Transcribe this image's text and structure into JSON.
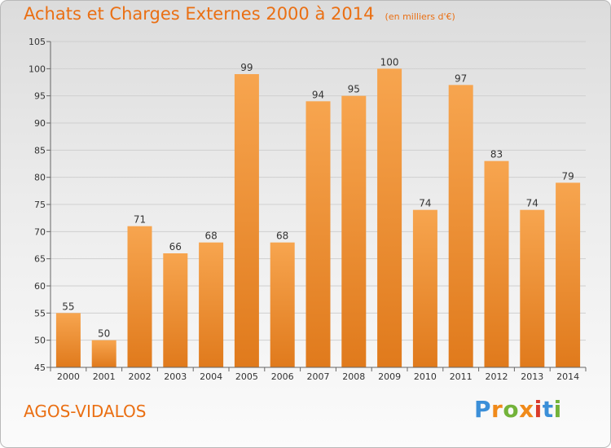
{
  "header": {
    "title": "Achats et Charges Externes 2000 à 2014",
    "unit": "(en milliers d'€)"
  },
  "footer": {
    "commune": "AGOS-VIDALOS"
  },
  "logo": {
    "letters": [
      "P",
      "r",
      "o",
      "x",
      "i",
      "t",
      "i"
    ]
  },
  "colors": {
    "bar_light": "#f7a54f",
    "bar_dark": "#e07a1c",
    "accent": "#ea6f13",
    "grid": "#cfcfcf",
    "axis": "#666666"
  },
  "chart_data": {
    "type": "bar",
    "title": "Achats et Charges Externes 2000 à 2014",
    "categories": [
      "2000",
      "2001",
      "2002",
      "2003",
      "2004",
      "2005",
      "2006",
      "2007",
      "2008",
      "2009",
      "2010",
      "2011",
      "2012",
      "2013",
      "2014"
    ],
    "values": [
      55,
      50,
      71,
      66,
      68,
      99,
      68,
      94,
      95,
      100,
      74,
      97,
      83,
      74,
      79
    ],
    "ylim": [
      45,
      105
    ],
    "yticks": [
      45,
      50,
      55,
      60,
      65,
      70,
      75,
      80,
      85,
      90,
      95,
      100,
      105
    ],
    "grid": true,
    "legend": "none"
  }
}
